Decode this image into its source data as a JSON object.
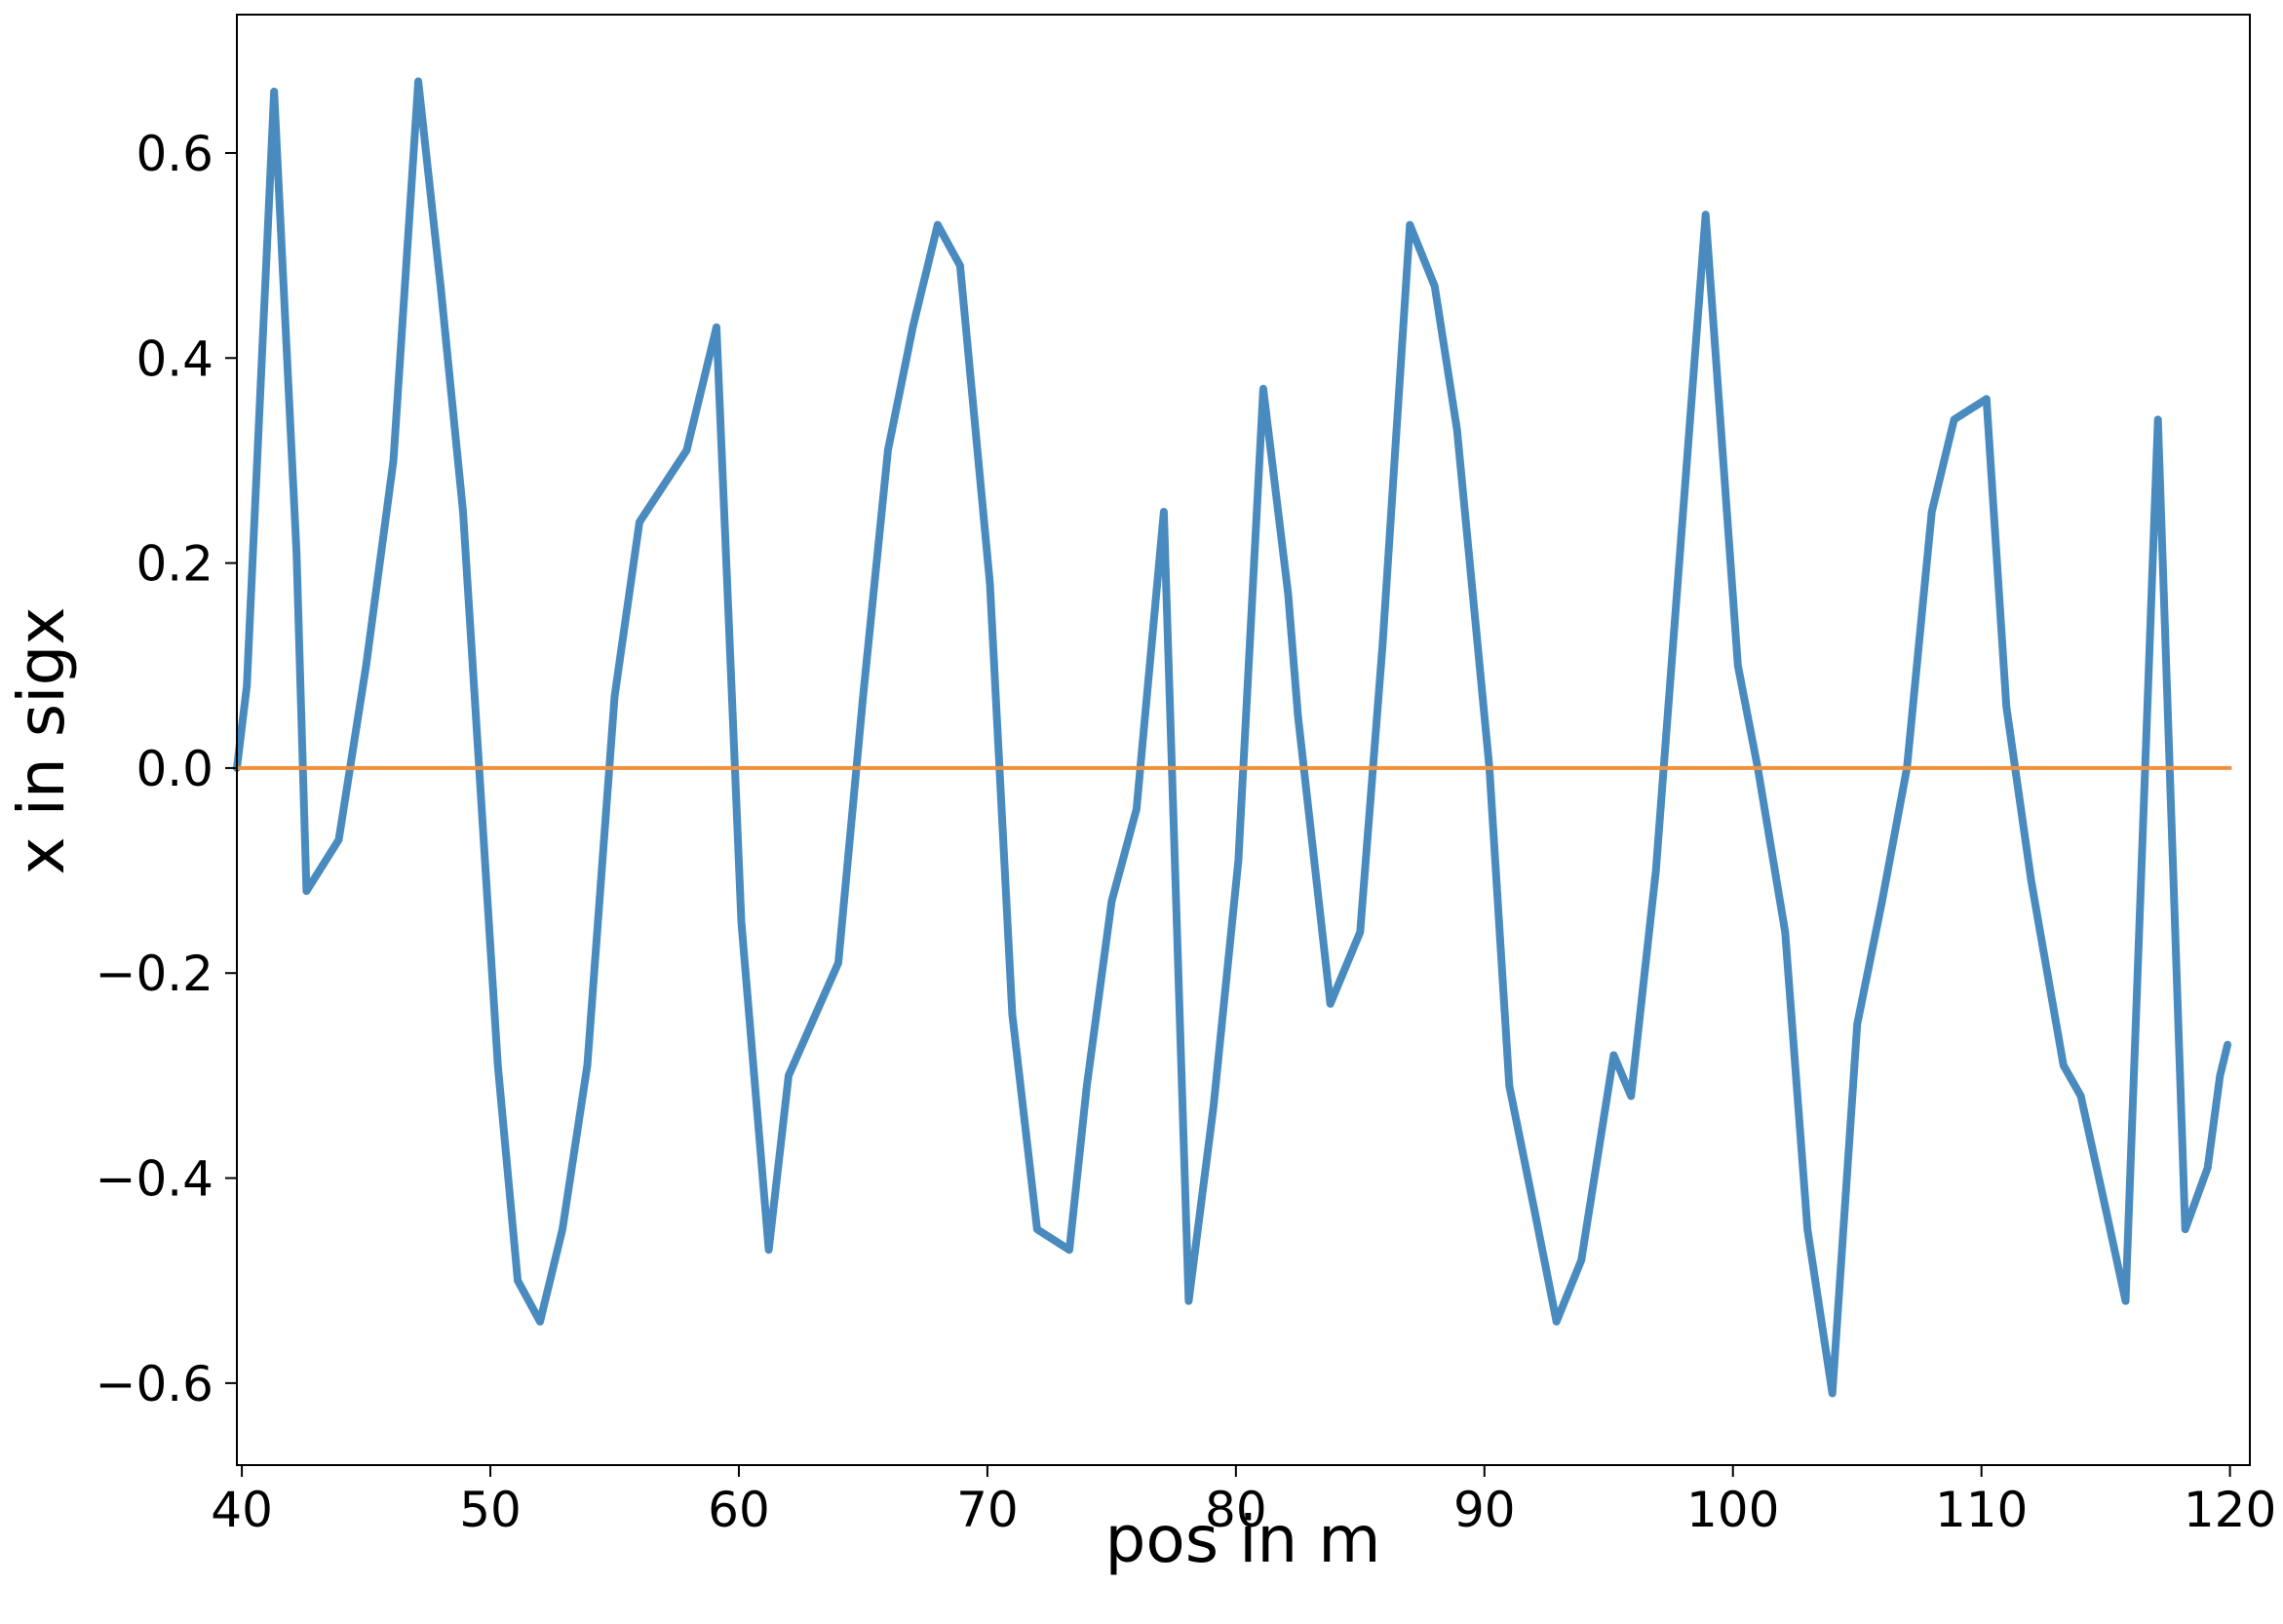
{
  "chart_data": {
    "type": "line",
    "title": "",
    "xlabel": "pos in m",
    "ylabel": "x in sigx",
    "xlim": [
      39.8,
      120.8
    ],
    "ylim": [
      -0.68,
      0.735
    ],
    "grid": false,
    "legend": "none",
    "xticks": [
      40,
      50,
      60,
      70,
      80,
      90,
      100,
      110,
      120
    ],
    "xtick_labels": [
      "40",
      "50",
      "60",
      "70",
      "80",
      "90",
      "100",
      "110",
      "120"
    ],
    "yticks": [
      -0.6,
      -0.4,
      -0.2,
      0.0,
      0.2,
      0.4,
      0.6
    ],
    "ytick_labels": [
      "−0.6",
      "−0.4",
      "−0.2",
      "0.0",
      "0.2",
      "0.4",
      "0.6"
    ],
    "series": [
      {
        "color": "#4a8bbf",
        "x": [
          39.8,
          40.2,
          41.3,
          42.2,
          42.6,
          43.9,
          45.0,
          46.1,
          47.1,
          48.0,
          48.9,
          50.3,
          51.1,
          52.0,
          52.9,
          53.9,
          55.0,
          56.0,
          57.9,
          59.1,
          60.1,
          61.2,
          62.0,
          64.0,
          65.0,
          66.0,
          67.0,
          68.0,
          68.9,
          70.1,
          71.0,
          72.0,
          73.3,
          74.0,
          75.0,
          76.0,
          77.1,
          78.1,
          79.1,
          80.1,
          81.1,
          82.1,
          82.5,
          83.8,
          85.0,
          85.9,
          87.0,
          88.0,
          88.9,
          90.2,
          91.0,
          92.0,
          92.9,
          93.9,
          95.2,
          95.9,
          96.9,
          97.9,
          98.9,
          100.2,
          101.0,
          102.1,
          103.0,
          104.0,
          105.0,
          106.0,
          107.0,
          108.0,
          108.9,
          110.2,
          111.0,
          112.0,
          113.3,
          114.0,
          115.0,
          115.8,
          117.1,
          118.2,
          119.1,
          119.6,
          119.9
        ],
        "y": [
          0.0,
          0.08,
          0.66,
          0.21,
          -0.12,
          -0.07,
          0.1,
          0.3,
          0.67,
          0.47,
          0.25,
          -0.29,
          -0.5,
          -0.54,
          -0.45,
          -0.29,
          0.07,
          0.24,
          0.31,
          0.43,
          -0.15,
          -0.47,
          -0.3,
          -0.19,
          0.07,
          0.31,
          0.43,
          0.53,
          0.49,
          0.18,
          -0.24,
          -0.45,
          -0.47,
          -0.31,
          -0.13,
          -0.04,
          0.25,
          -0.52,
          -0.33,
          -0.09,
          0.37,
          0.17,
          0.05,
          -0.23,
          -0.16,
          0.12,
          0.53,
          0.47,
          0.33,
          0.0,
          -0.31,
          -0.43,
          -0.54,
          -0.48,
          -0.28,
          -0.32,
          -0.1,
          0.22,
          0.54,
          0.1,
          0.0,
          -0.16,
          -0.45,
          -0.61,
          -0.25,
          -0.13,
          0.0,
          0.25,
          0.34,
          0.36,
          0.06,
          -0.11,
          -0.29,
          -0.32,
          -0.43,
          -0.52,
          0.34,
          -0.45,
          -0.39,
          -0.3,
          -0.27
        ]
      },
      {
        "color": "#f0903a",
        "x": [
          39.8,
          120.0
        ],
        "y": [
          0.0,
          0.0
        ]
      }
    ]
  }
}
